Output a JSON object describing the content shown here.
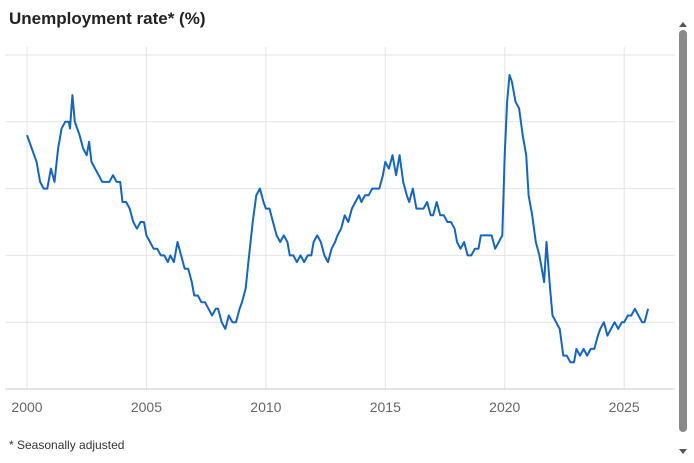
{
  "title": "Unemployment rate* (%)",
  "footnote": "* Seasonally adjusted",
  "scrollbar": {
    "up_icon": "chevron-up-icon",
    "down_icon": "chevron-down-icon"
  },
  "colors": {
    "line": "#1565c0",
    "grid": "#e4e4e4",
    "axis": "#c8c8c8",
    "tick_text": "#666666"
  },
  "chart_data": {
    "type": "line",
    "title": "Unemployment rate* (%)",
    "xlabel": "",
    "ylabel": "",
    "xlim": [
      2000,
      2026.5
    ],
    "ylim": [
      3,
      8
    ],
    "grid": true,
    "x_ticks": [
      2000,
      2005,
      2010,
      2015,
      2020,
      2025
    ],
    "x_tick_labels": [
      "2000",
      "2005",
      "2010",
      "2015",
      "2020",
      "2025"
    ],
    "y_tick_labels_shown": false,
    "series": [
      {
        "values": [
          [
            2000.0,
            6.8
          ],
          [
            2000.2,
            6.6
          ],
          [
            2000.4,
            6.4
          ],
          [
            2000.55,
            6.1
          ],
          [
            2000.7,
            6.0
          ],
          [
            2000.85,
            6.0
          ],
          [
            2001.0,
            6.3
          ],
          [
            2001.15,
            6.1
          ],
          [
            2001.3,
            6.6
          ],
          [
            2001.45,
            6.9
          ],
          [
            2001.6,
            7.0
          ],
          [
            2001.75,
            7.0
          ],
          [
            2001.8,
            6.9
          ],
          [
            2001.9,
            7.4
          ],
          [
            2002.0,
            7.0
          ],
          [
            2002.2,
            6.8
          ],
          [
            2002.35,
            6.6
          ],
          [
            2002.5,
            6.5
          ],
          [
            2002.6,
            6.7
          ],
          [
            2002.7,
            6.4
          ],
          [
            2002.85,
            6.3
          ],
          [
            2003.0,
            6.2
          ],
          [
            2003.15,
            6.1
          ],
          [
            2003.3,
            6.1
          ],
          [
            2003.45,
            6.1
          ],
          [
            2003.6,
            6.2
          ],
          [
            2003.75,
            6.1
          ],
          [
            2003.9,
            6.1
          ],
          [
            2004.0,
            5.8
          ],
          [
            2004.15,
            5.8
          ],
          [
            2004.3,
            5.7
          ],
          [
            2004.45,
            5.5
          ],
          [
            2004.6,
            5.4
          ],
          [
            2004.75,
            5.5
          ],
          [
            2004.9,
            5.5
          ],
          [
            2005.0,
            5.3
          ],
          [
            2005.15,
            5.2
          ],
          [
            2005.3,
            5.1
          ],
          [
            2005.45,
            5.1
          ],
          [
            2005.6,
            5.0
          ],
          [
            2005.75,
            5.0
          ],
          [
            2005.9,
            4.9
          ],
          [
            2006.0,
            5.0
          ],
          [
            2006.15,
            4.9
          ],
          [
            2006.3,
            5.2
          ],
          [
            2006.45,
            5.0
          ],
          [
            2006.6,
            4.8
          ],
          [
            2006.75,
            4.8
          ],
          [
            2006.9,
            4.6
          ],
          [
            2007.0,
            4.4
          ],
          [
            2007.15,
            4.4
          ],
          [
            2007.3,
            4.3
          ],
          [
            2007.45,
            4.3
          ],
          [
            2007.6,
            4.2
          ],
          [
            2007.75,
            4.1
          ],
          [
            2007.9,
            4.2
          ],
          [
            2008.0,
            4.2
          ],
          [
            2008.15,
            4.0
          ],
          [
            2008.3,
            3.9
          ],
          [
            2008.45,
            4.1
          ],
          [
            2008.6,
            4.0
          ],
          [
            2008.75,
            4.0
          ],
          [
            2008.9,
            4.2
          ],
          [
            2009.0,
            4.3
          ],
          [
            2009.15,
            4.5
          ],
          [
            2009.3,
            5.0
          ],
          [
            2009.45,
            5.5
          ],
          [
            2009.6,
            5.9
          ],
          [
            2009.75,
            6.0
          ],
          [
            2009.9,
            5.8
          ],
          [
            2010.0,
            5.7
          ],
          [
            2010.15,
            5.7
          ],
          [
            2010.3,
            5.5
          ],
          [
            2010.45,
            5.3
          ],
          [
            2010.6,
            5.2
          ],
          [
            2010.75,
            5.3
          ],
          [
            2010.9,
            5.2
          ],
          [
            2011.0,
            5.0
          ],
          [
            2011.15,
            5.0
          ],
          [
            2011.3,
            4.9
          ],
          [
            2011.45,
            5.0
          ],
          [
            2011.6,
            4.9
          ],
          [
            2011.75,
            5.0
          ],
          [
            2011.9,
            5.0
          ],
          [
            2012.0,
            5.2
          ],
          [
            2012.15,
            5.3
          ],
          [
            2012.3,
            5.2
          ],
          [
            2012.45,
            5.0
          ],
          [
            2012.6,
            4.9
          ],
          [
            2012.75,
            5.1
          ],
          [
            2012.9,
            5.2
          ],
          [
            2013.0,
            5.3
          ],
          [
            2013.15,
            5.4
          ],
          [
            2013.3,
            5.6
          ],
          [
            2013.45,
            5.5
          ],
          [
            2013.6,
            5.7
          ],
          [
            2013.75,
            5.8
          ],
          [
            2013.9,
            5.9
          ],
          [
            2014.0,
            5.8
          ],
          [
            2014.15,
            5.9
          ],
          [
            2014.3,
            5.9
          ],
          [
            2014.45,
            6.0
          ],
          [
            2014.6,
            6.0
          ],
          [
            2014.75,
            6.0
          ],
          [
            2014.9,
            6.2
          ],
          [
            2015.0,
            6.4
          ],
          [
            2015.15,
            6.3
          ],
          [
            2015.3,
            6.5
          ],
          [
            2015.45,
            6.2
          ],
          [
            2015.6,
            6.5
          ],
          [
            2015.75,
            6.1
          ],
          [
            2015.9,
            5.9
          ],
          [
            2016.0,
            5.8
          ],
          [
            2016.15,
            6.0
          ],
          [
            2016.3,
            5.7
          ],
          [
            2016.45,
            5.7
          ],
          [
            2016.6,
            5.7
          ],
          [
            2016.75,
            5.8
          ],
          [
            2016.9,
            5.6
          ],
          [
            2017.0,
            5.6
          ],
          [
            2017.15,
            5.8
          ],
          [
            2017.3,
            5.6
          ],
          [
            2017.45,
            5.6
          ],
          [
            2017.6,
            5.5
          ],
          [
            2017.75,
            5.5
          ],
          [
            2017.9,
            5.4
          ],
          [
            2018.0,
            5.2
          ],
          [
            2018.15,
            5.1
          ],
          [
            2018.3,
            5.2
          ],
          [
            2018.45,
            5.0
          ],
          [
            2018.6,
            5.0
          ],
          [
            2018.75,
            5.1
          ],
          [
            2018.9,
            5.1
          ],
          [
            2019.0,
            5.3
          ],
          [
            2019.15,
            5.3
          ],
          [
            2019.3,
            5.3
          ],
          [
            2019.45,
            5.3
          ],
          [
            2019.6,
            5.1
          ],
          [
            2019.75,
            5.2
          ],
          [
            2019.9,
            5.3
          ],
          [
            2020.0,
            6.5
          ],
          [
            2020.1,
            7.3
          ],
          [
            2020.2,
            7.7
          ],
          [
            2020.3,
            7.6
          ],
          [
            2020.45,
            7.3
          ],
          [
            2020.6,
            7.2
          ],
          [
            2020.75,
            6.8
          ],
          [
            2020.9,
            6.5
          ],
          [
            2021.0,
            5.9
          ],
          [
            2021.15,
            5.6
          ],
          [
            2021.3,
            5.2
          ],
          [
            2021.45,
            5.0
          ],
          [
            2021.55,
            4.8
          ],
          [
            2021.65,
            4.6
          ],
          [
            2021.75,
            5.2
          ],
          [
            2021.9,
            4.5
          ],
          [
            2022.0,
            4.1
          ],
          [
            2022.15,
            4.0
          ],
          [
            2022.3,
            3.9
          ],
          [
            2022.45,
            3.5
          ],
          [
            2022.6,
            3.5
          ],
          [
            2022.75,
            3.4
          ],
          [
            2022.9,
            3.4
          ],
          [
            2023.0,
            3.6
          ],
          [
            2023.15,
            3.5
          ],
          [
            2023.3,
            3.6
          ],
          [
            2023.45,
            3.5
          ],
          [
            2023.6,
            3.6
          ],
          [
            2023.75,
            3.6
          ],
          [
            2023.9,
            3.8
          ],
          [
            2024.0,
            3.9
          ],
          [
            2024.15,
            4.0
          ],
          [
            2024.3,
            3.8
          ],
          [
            2024.45,
            3.9
          ],
          [
            2024.6,
            4.0
          ],
          [
            2024.75,
            3.9
          ],
          [
            2024.9,
            4.0
          ],
          [
            2025.0,
            4.0
          ],
          [
            2025.15,
            4.1
          ],
          [
            2025.3,
            4.1
          ],
          [
            2025.45,
            4.2
          ],
          [
            2025.6,
            4.1
          ],
          [
            2025.75,
            4.0
          ],
          [
            2025.85,
            4.0
          ],
          [
            2026.0,
            4.2
          ]
        ]
      }
    ]
  }
}
